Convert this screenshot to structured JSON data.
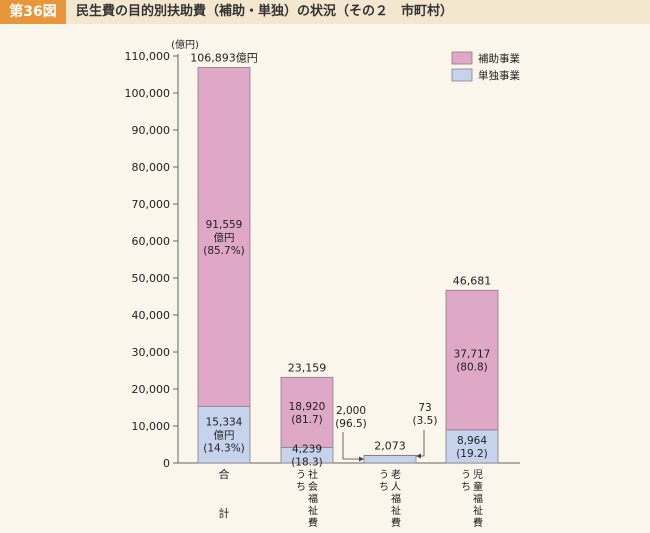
{
  "header": {
    "figure_number": "第36図",
    "title": "民生費の目的別扶助費（補助・単独）の状況（その２　市町村）"
  },
  "chart_data": {
    "type": "bar",
    "stacked": true,
    "unit": "(億円)",
    "ylim": [
      0,
      110000
    ],
    "yticks": [
      0,
      10000,
      20000,
      30000,
      40000,
      50000,
      60000,
      70000,
      80000,
      90000,
      100000,
      110000
    ],
    "ytick_labels": [
      "0",
      "10,000",
      "20,000",
      "30,000",
      "40,000",
      "50,000",
      "60,000",
      "70,000",
      "80,000",
      "90,000",
      "100,000",
      "110,000"
    ],
    "categories": [
      {
        "name": "計",
        "lines": [
          "合",
          "計"
        ]
      },
      {
        "name": "うち社会福祉費",
        "lines": [
          "う ち",
          "社会福祉費"
        ]
      },
      {
        "name": "うち老人福祉費",
        "lines": [
          "う ち",
          "老人福祉費"
        ]
      },
      {
        "name": "うち児童福祉費",
        "lines": [
          "う ち",
          "児童福祉費"
        ]
      }
    ],
    "series": [
      {
        "name": "単独事業",
        "values": [
          15334,
          4239,
          2000,
          8964
        ]
      },
      {
        "name": "補助事業",
        "values": [
          91559,
          18920,
          73,
          37717
        ]
      }
    ],
    "totals": [
      106893,
      23159,
      2073,
      46681
    ],
    "labels": {
      "totals": [
        "106,893億円",
        "23,159",
        "2,073",
        "46,681"
      ],
      "単独事業": [
        [
          "15,334",
          "億円",
          "(14.3%)"
        ],
        [
          "4,239",
          "(18.3)"
        ],
        [
          "2,000",
          "(96.5)"
        ],
        [
          "8,964",
          "(19.2)"
        ]
      ],
      "補助事業": [
        [
          "91,559",
          "億円",
          "(85.7%)"
        ],
        [
          "18,920",
          "(81.7)"
        ],
        [
          "73",
          "(3.5)"
        ],
        [
          "37,717",
          "(80.8)"
        ]
      ]
    },
    "legend": {
      "position": "top-right",
      "items": [
        "補助事業",
        "単独事業"
      ]
    },
    "colors": {
      "補助事業": "#dfa8c6",
      "単独事業": "#c6d3ec",
      "outline": "#8a7f84",
      "axis": "#666666"
    }
  }
}
